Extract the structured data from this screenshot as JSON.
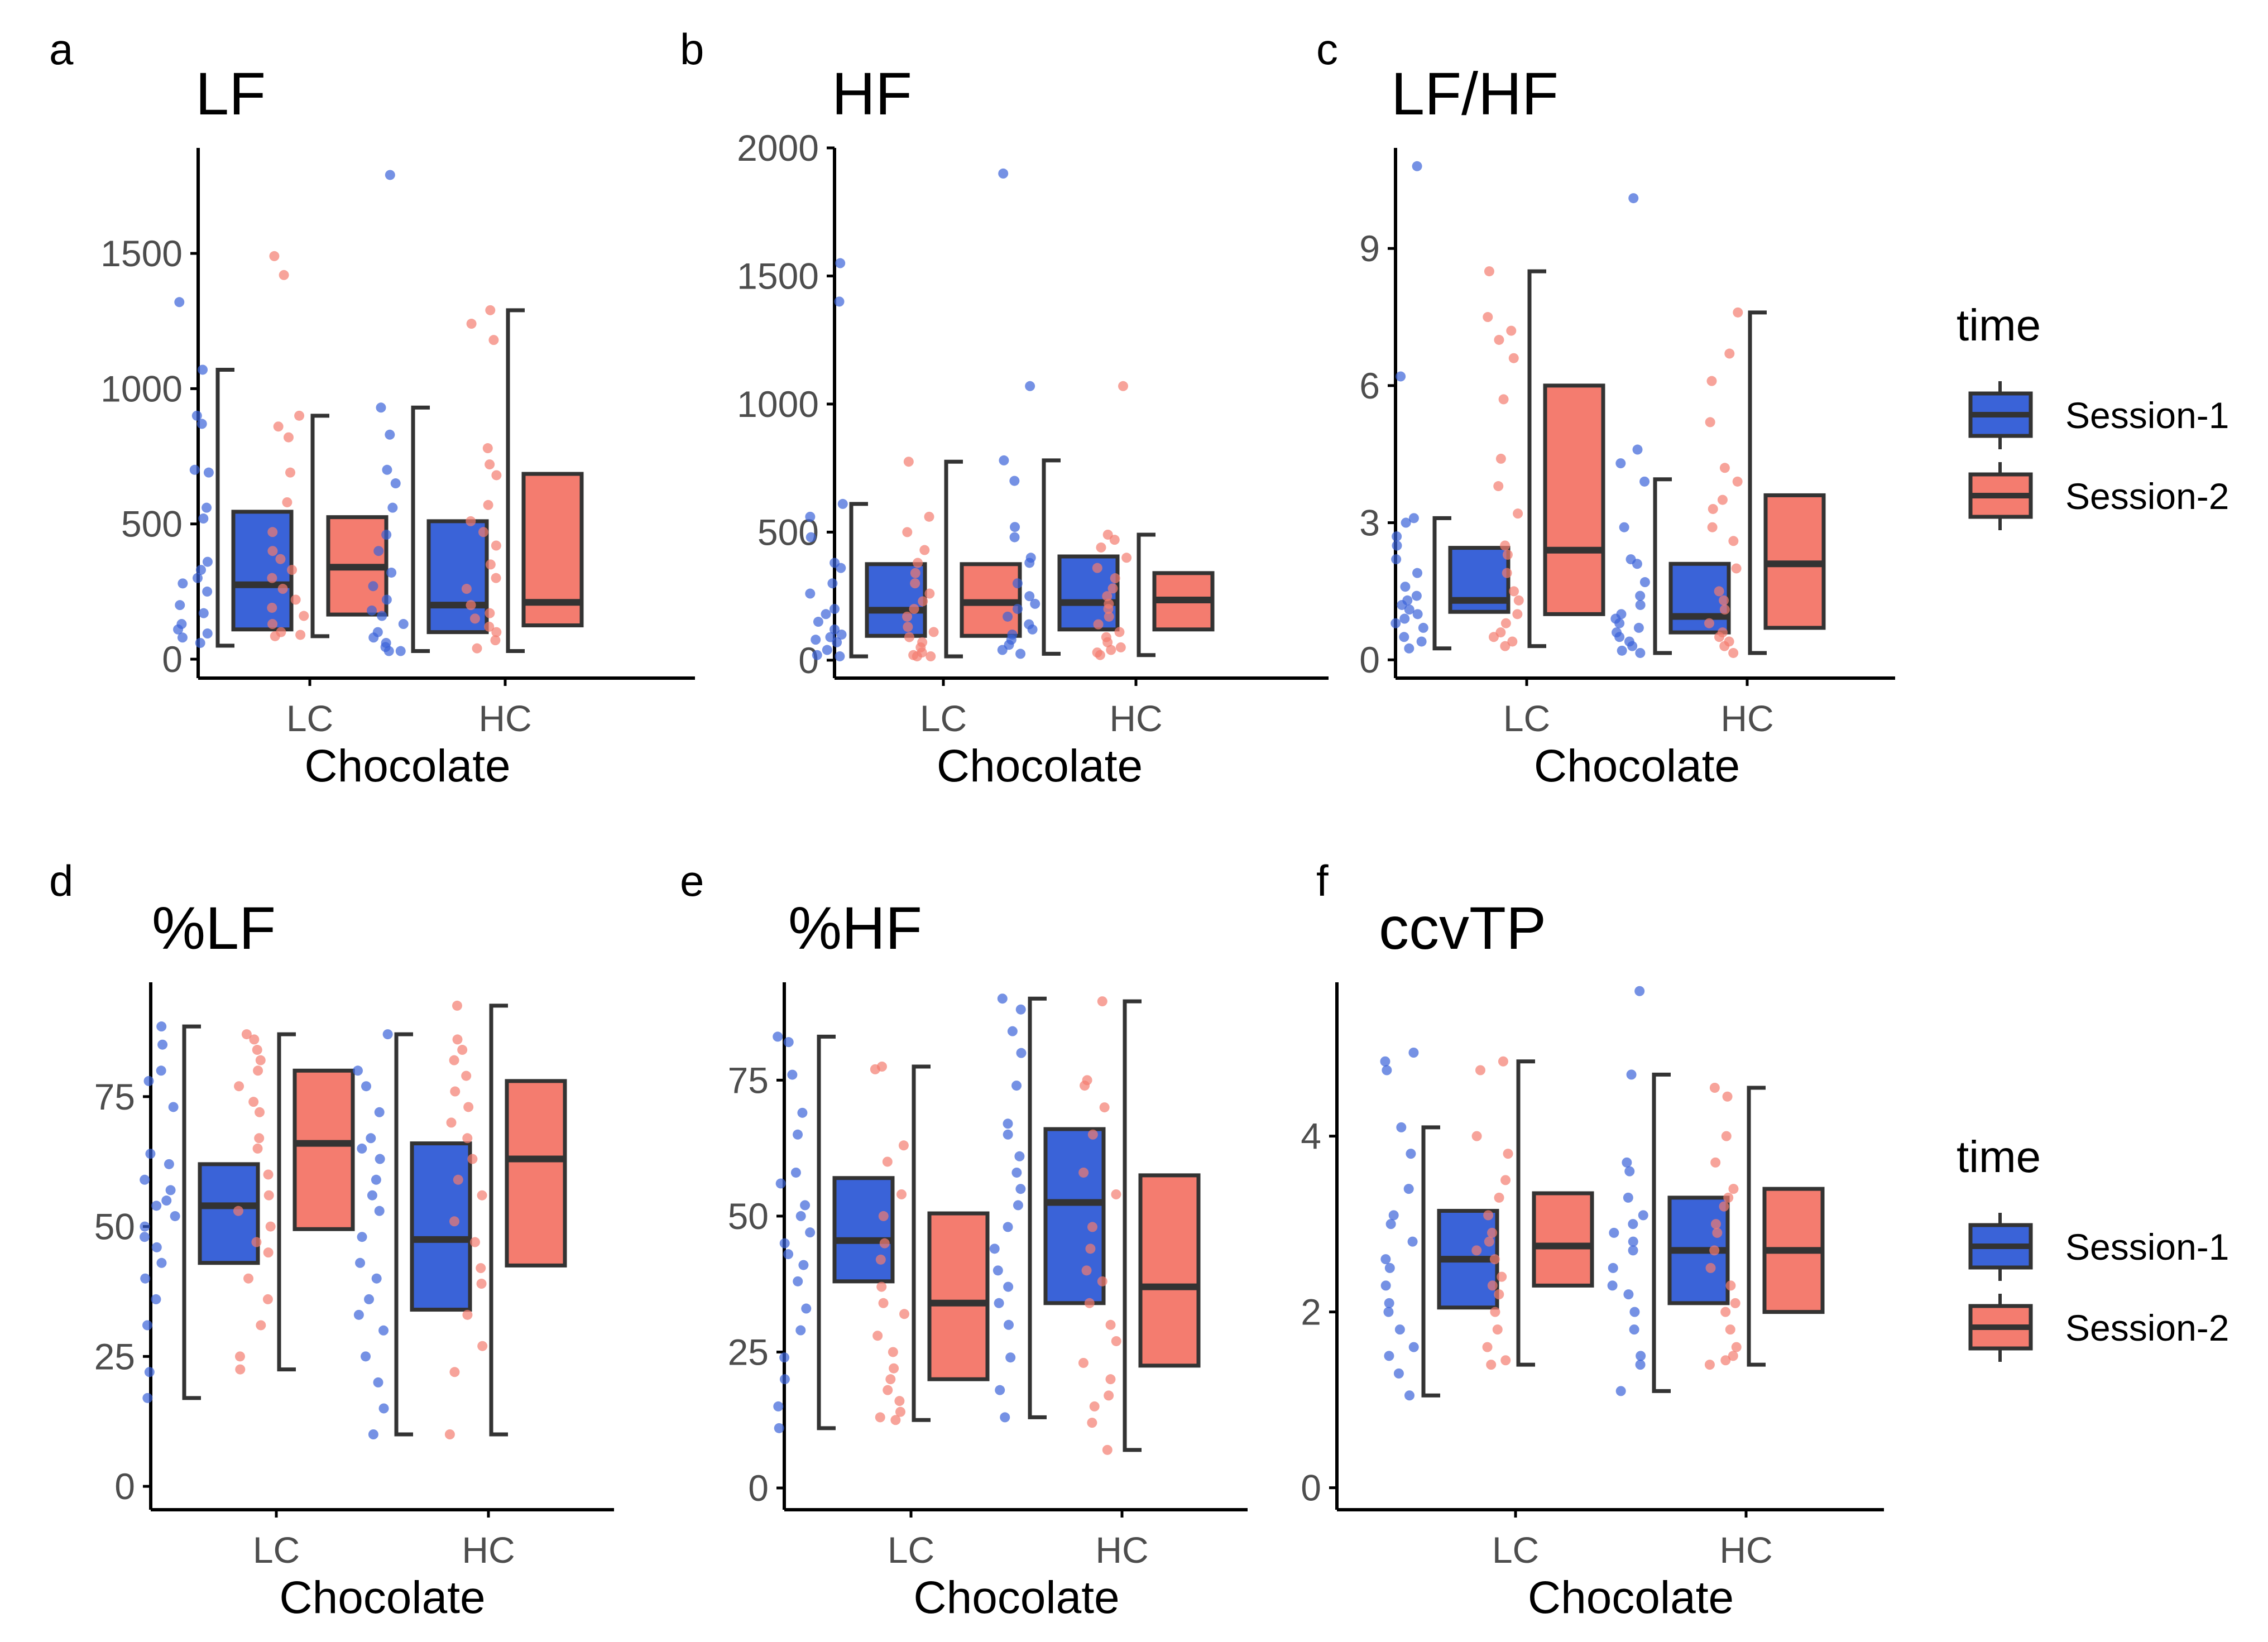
{
  "colors": {
    "session1": "#3a63d8",
    "session2": "#f47c6f",
    "line": "#333333",
    "axis": "#000000"
  },
  "legend": {
    "title": "time",
    "items": [
      "Session-1",
      "Session-2"
    ]
  },
  "chart_data": [
    {
      "type": "box",
      "letter": "a",
      "title": "LF",
      "xlabel": "Chocolate",
      "categories": [
        "LC",
        "HC"
      ],
      "ylim": [
        -70,
        1890
      ],
      "yticks": [
        0,
        500,
        1000,
        1500
      ],
      "boxes": [
        {
          "cat": "LC",
          "series": "Session-1",
          "whisker": [
            50,
            1070
          ],
          "q1": 110,
          "median": 275,
          "q3": 545,
          "points": [
            1320,
            1070,
            900,
            870,
            700,
            690,
            560,
            520,
            360,
            330,
            300,
            280,
            250,
            200,
            170,
            130,
            110,
            95,
            80,
            60
          ]
        },
        {
          "cat": "LC",
          "series": "Session-2",
          "whisker": [
            85,
            900
          ],
          "q1": 165,
          "median": 340,
          "q3": 525,
          "points": [
            1490,
            1420,
            900,
            860,
            820,
            690,
            580,
            470,
            400,
            370,
            330,
            300,
            260,
            220,
            190,
            160,
            130,
            100,
            90,
            85
          ]
        },
        {
          "cat": "HC",
          "series": "Session-1",
          "whisker": [
            30,
            930
          ],
          "q1": 100,
          "median": 200,
          "q3": 510,
          "points": [
            1790,
            930,
            830,
            700,
            650,
            560,
            460,
            400,
            320,
            270,
            220,
            180,
            160,
            130,
            100,
            80,
            60,
            45,
            30,
            30
          ]
        },
        {
          "cat": "HC",
          "series": "Session-2",
          "whisker": [
            30,
            1290
          ],
          "q1": 125,
          "median": 210,
          "q3": 685,
          "points": [
            1290,
            1240,
            1180,
            780,
            720,
            680,
            570,
            510,
            470,
            420,
            350,
            300,
            260,
            200,
            170,
            150,
            120,
            100,
            70,
            40
          ]
        }
      ]
    },
    {
      "type": "box",
      "letter": "b",
      "title": "HF",
      "xlabel": "Chocolate",
      "categories": [
        "LC",
        "HC"
      ],
      "ylim": [
        -70,
        2000
      ],
      "yticks": [
        0,
        500,
        1000,
        1500,
        2000
      ],
      "boxes": [
        {
          "cat": "LC",
          "series": "Session-1",
          "whisker": [
            15,
            610
          ],
          "q1": 95,
          "median": 195,
          "q3": 375,
          "points": [
            1550,
            1400,
            610,
            560,
            480,
            380,
            360,
            300,
            260,
            200,
            180,
            150,
            120,
            100,
            90,
            80,
            70,
            40,
            20,
            15
          ]
        },
        {
          "cat": "LC",
          "series": "Session-2",
          "whisker": [
            15,
            775
          ],
          "q1": 95,
          "median": 225,
          "q3": 375,
          "points": [
            775,
            560,
            500,
            430,
            380,
            340,
            300,
            260,
            230,
            200,
            170,
            130,
            110,
            90,
            70,
            50,
            30,
            20,
            15,
            15
          ]
        },
        {
          "cat": "HC",
          "series": "Session-1",
          "whisker": [
            25,
            780
          ],
          "q1": 120,
          "median": 225,
          "q3": 405,
          "points": [
            1900,
            1070,
            780,
            700,
            520,
            480,
            400,
            380,
            300,
            250,
            220,
            200,
            170,
            140,
            120,
            100,
            80,
            60,
            40,
            25
          ]
        },
        {
          "cat": "HC",
          "series": "Session-2",
          "whisker": [
            20,
            490
          ],
          "q1": 120,
          "median": 235,
          "q3": 340,
          "points": [
            1070,
            490,
            470,
            440,
            400,
            360,
            320,
            280,
            250,
            220,
            200,
            170,
            140,
            110,
            90,
            70,
            50,
            40,
            30,
            20
          ]
        }
      ]
    },
    {
      "type": "box",
      "letter": "c",
      "title": "LF/HF",
      "xlabel": "Chocolate",
      "categories": [
        "LC",
        "HC"
      ],
      "ylim": [
        -0.4,
        11.2
      ],
      "yticks": [
        0,
        3,
        6,
        9
      ],
      "boxes": [
        {
          "cat": "LC",
          "series": "Session-1",
          "whisker": [
            0.25,
            3.1
          ],
          "q1": 1.05,
          "median": 1.3,
          "q3": 2.45,
          "points": [
            10.8,
            6.2,
            3.1,
            3.0,
            2.7,
            2.5,
            2.2,
            1.9,
            1.6,
            1.4,
            1.3,
            1.2,
            1.1,
            1.0,
            0.9,
            0.8,
            0.7,
            0.5,
            0.4,
            0.25
          ]
        },
        {
          "cat": "LC",
          "series": "Session-2",
          "whisker": [
            0.3,
            8.5
          ],
          "q1": 1.0,
          "median": 2.4,
          "q3": 6.0,
          "points": [
            8.5,
            7.5,
            7.2,
            7.0,
            6.6,
            5.7,
            4.4,
            3.8,
            3.2,
            2.5,
            2.3,
            1.9,
            1.5,
            1.3,
            1.0,
            0.8,
            0.6,
            0.5,
            0.4,
            0.3
          ]
        },
        {
          "cat": "HC",
          "series": "Session-1",
          "whisker": [
            0.15,
            3.95
          ],
          "q1": 0.6,
          "median": 0.95,
          "q3": 2.1,
          "points": [
            10.1,
            4.6,
            4.3,
            3.9,
            2.9,
            2.2,
            2.1,
            1.7,
            1.4,
            1.2,
            1.0,
            0.9,
            0.8,
            0.7,
            0.6,
            0.5,
            0.4,
            0.3,
            0.2,
            0.15
          ]
        },
        {
          "cat": "HC",
          "series": "Session-2",
          "whisker": [
            0.15,
            7.6
          ],
          "q1": 0.7,
          "median": 2.1,
          "q3": 3.6,
          "points": [
            7.6,
            6.7,
            6.1,
            5.2,
            4.2,
            3.9,
            3.5,
            3.3,
            2.9,
            2.6,
            2.0,
            1.5,
            1.3,
            1.1,
            0.8,
            0.6,
            0.5,
            0.4,
            0.3,
            0.15
          ]
        }
      ]
    },
    {
      "type": "box",
      "letter": "d",
      "title": "%LF",
      "xlabel": "Chocolate",
      "categories": [
        "LC",
        "HC"
      ],
      "ylim": [
        -4.5,
        97
      ],
      "yticks": [
        0,
        25,
        50,
        75
      ],
      "boxes": [
        {
          "cat": "LC",
          "series": "Session-1",
          "whisker": [
            17,
            88.5
          ],
          "q1": 43,
          "median": 54,
          "q3": 62,
          "points": [
            88.5,
            85,
            80,
            78,
            73,
            64,
            62,
            59,
            57,
            55,
            54,
            52,
            50,
            48,
            46,
            43,
            40,
            36,
            31,
            22,
            17
          ]
        },
        {
          "cat": "LC",
          "series": "Session-2",
          "whisker": [
            22.5,
            87
          ],
          "q1": 49.5,
          "median": 66,
          "q3": 80,
          "points": [
            87,
            86,
            84,
            82,
            80,
            77,
            74,
            72,
            67,
            65,
            60,
            56,
            53,
            50,
            47,
            45,
            40,
            36,
            31,
            25,
            22.5
          ]
        },
        {
          "cat": "HC",
          "series": "Session-1",
          "whisker": [
            10,
            87
          ],
          "q1": 34,
          "median": 47.5,
          "q3": 66,
          "points": [
            87,
            80,
            77,
            72,
            67,
            65,
            63,
            59,
            56,
            53,
            48,
            43,
            40,
            36,
            33,
            30,
            25,
            20,
            15,
            10
          ]
        },
        {
          "cat": "HC",
          "series": "Session-2",
          "whisker": [
            10,
            92.5
          ],
          "q1": 42.5,
          "median": 63,
          "q3": 78,
          "points": [
            92.5,
            86,
            84,
            82,
            79,
            76,
            73,
            70,
            67,
            63,
            59,
            56,
            51,
            47,
            42,
            39,
            33,
            27,
            22,
            10
          ]
        }
      ]
    },
    {
      "type": "box",
      "letter": "e",
      "title": "%HF",
      "xlabel": "Chocolate",
      "categories": [
        "LC",
        "HC"
      ],
      "ylim": [
        -4,
        93
      ],
      "yticks": [
        0,
        25,
        50,
        75
      ],
      "boxes": [
        {
          "cat": "LC",
          "series": "Session-1",
          "whisker": [
            11,
            83
          ],
          "q1": 38,
          "median": 45.5,
          "q3": 57,
          "points": [
            83,
            82,
            76,
            69,
            65,
            58,
            56,
            52,
            50,
            47,
            45,
            43,
            41,
            38,
            33,
            29,
            24,
            20,
            15,
            11
          ]
        },
        {
          "cat": "LC",
          "series": "Session-2",
          "whisker": [
            12.5,
            77.5
          ],
          "q1": 20,
          "median": 34,
          "q3": 50.5,
          "points": [
            77.5,
            77,
            63,
            60,
            54,
            50,
            45,
            42,
            37,
            34,
            32,
            28,
            25,
            22,
            20,
            18,
            16,
            14,
            13,
            12.5
          ]
        },
        {
          "cat": "HC",
          "series": "Session-1",
          "whisker": [
            13,
            90
          ],
          "q1": 34,
          "median": 52.5,
          "q3": 66,
          "points": [
            90,
            88,
            84,
            80,
            74,
            67,
            65,
            61,
            58,
            55,
            52,
            48,
            44,
            40,
            37,
            34,
            30,
            24,
            18,
            13
          ]
        },
        {
          "cat": "HC",
          "series": "Session-2",
          "whisker": [
            7,
            89.5
          ],
          "q1": 22.5,
          "median": 37,
          "q3": 57.5,
          "points": [
            89.5,
            75,
            74,
            70,
            65,
            58,
            54,
            48,
            44,
            40,
            38,
            34,
            30,
            27,
            23,
            20,
            17,
            15,
            12,
            7
          ]
        }
      ]
    },
    {
      "type": "box",
      "letter": "f",
      "title": "ccvTP",
      "xlabel": "Chocolate",
      "categories": [
        "LC",
        "HC"
      ],
      "ylim": [
        -0.25,
        5.75
      ],
      "yticks": [
        0,
        2,
        4
      ],
      "boxes": [
        {
          "cat": "LC",
          "series": "Session-1",
          "whisker": [
            1.05,
            4.1
          ],
          "q1": 2.05,
          "median": 2.6,
          "q3": 3.15,
          "points": [
            4.95,
            4.85,
            4.75,
            4.1,
            3.8,
            3.4,
            3.1,
            3.0,
            2.8,
            2.6,
            2.5,
            2.3,
            2.1,
            2.0,
            1.8,
            1.6,
            1.5,
            1.3,
            1.05
          ]
        },
        {
          "cat": "LC",
          "series": "Session-2",
          "whisker": [
            1.4,
            4.85
          ],
          "q1": 2.3,
          "median": 2.75,
          "q3": 3.35,
          "points": [
            4.85,
            4.75,
            4.0,
            3.8,
            3.5,
            3.3,
            3.1,
            2.9,
            2.8,
            2.7,
            2.6,
            2.4,
            2.3,
            2.2,
            2.0,
            1.8,
            1.6,
            1.45,
            1.4
          ]
        },
        {
          "cat": "HC",
          "series": "Session-1",
          "whisker": [
            1.1,
            4.7
          ],
          "q1": 2.1,
          "median": 2.7,
          "q3": 3.3,
          "points": [
            5.65,
            4.7,
            3.7,
            3.6,
            3.3,
            3.1,
            3.0,
            2.9,
            2.8,
            2.7,
            2.5,
            2.3,
            2.2,
            2.0,
            1.8,
            1.5,
            1.4,
            1.1
          ]
        },
        {
          "cat": "HC",
          "series": "Session-2",
          "whisker": [
            1.4,
            4.55
          ],
          "q1": 2.0,
          "median": 2.7,
          "q3": 3.4,
          "points": [
            4.55,
            4.45,
            4.0,
            3.7,
            3.4,
            3.3,
            3.2,
            3.0,
            2.9,
            2.7,
            2.5,
            2.3,
            2.1,
            2.0,
            1.8,
            1.6,
            1.5,
            1.45,
            1.4
          ]
        }
      ]
    }
  ]
}
